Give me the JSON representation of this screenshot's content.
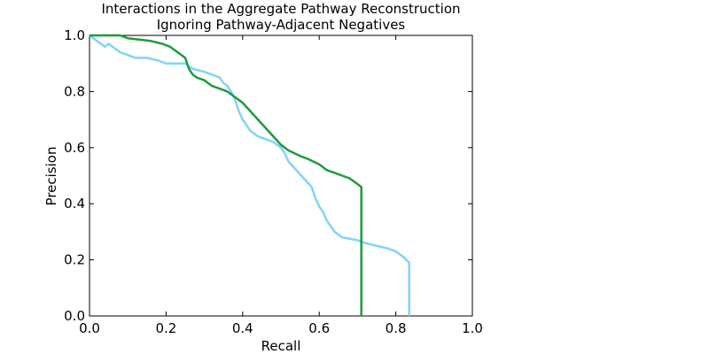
{
  "chart_data": {
    "type": "line",
    "title_line1": "Interactions in the Aggregate Pathway Reconstruction",
    "title_line2": "Ignoring Pathway-Adjacent Negatives",
    "xlabel": "Recall",
    "ylabel": "Precision",
    "xlim": [
      0.0,
      1.0
    ],
    "ylim": [
      0.0,
      1.0
    ],
    "xticks": [
      "0.0",
      "0.2",
      "0.4",
      "0.6",
      "0.8",
      "1.0"
    ],
    "yticks": [
      "0.0",
      "0.2",
      "0.4",
      "0.6",
      "0.8",
      "1.0"
    ],
    "grid": false,
    "legend": "none",
    "series": [
      {
        "color": "#7fd4f7",
        "x": [
          0.0,
          0.01,
          0.02,
          0.03,
          0.04,
          0.05,
          0.06,
          0.08,
          0.1,
          0.12,
          0.15,
          0.18,
          0.2,
          0.22,
          0.25,
          0.27,
          0.3,
          0.32,
          0.34,
          0.35,
          0.36,
          0.37,
          0.38,
          0.39,
          0.4,
          0.42,
          0.44,
          0.46,
          0.48,
          0.5,
          0.51,
          0.52,
          0.54,
          0.56,
          0.58,
          0.59,
          0.6,
          0.61,
          0.62,
          0.64,
          0.66,
          0.7,
          0.72,
          0.75,
          0.78,
          0.8,
          0.82,
          0.835,
          0.835
        ],
        "y": [
          1.0,
          0.99,
          0.98,
          0.97,
          0.96,
          0.97,
          0.96,
          0.94,
          0.93,
          0.92,
          0.92,
          0.91,
          0.9,
          0.9,
          0.9,
          0.88,
          0.87,
          0.86,
          0.85,
          0.83,
          0.82,
          0.8,
          0.77,
          0.73,
          0.7,
          0.66,
          0.64,
          0.63,
          0.62,
          0.6,
          0.58,
          0.55,
          0.52,
          0.49,
          0.46,
          0.42,
          0.39,
          0.37,
          0.34,
          0.3,
          0.28,
          0.27,
          0.26,
          0.25,
          0.24,
          0.23,
          0.21,
          0.19,
          0.0
        ]
      },
      {
        "color": "#1f9a3f",
        "x": [
          0.0,
          0.03,
          0.06,
          0.08,
          0.1,
          0.13,
          0.16,
          0.19,
          0.21,
          0.23,
          0.25,
          0.26,
          0.27,
          0.28,
          0.3,
          0.32,
          0.34,
          0.36,
          0.38,
          0.4,
          0.42,
          0.44,
          0.46,
          0.48,
          0.5,
          0.52,
          0.55,
          0.57,
          0.6,
          0.62,
          0.64,
          0.66,
          0.68,
          0.7,
          0.71,
          0.71
        ],
        "y": [
          1.0,
          1.0,
          1.0,
          1.0,
          0.99,
          0.985,
          0.98,
          0.97,
          0.96,
          0.94,
          0.92,
          0.88,
          0.86,
          0.85,
          0.84,
          0.82,
          0.81,
          0.8,
          0.78,
          0.76,
          0.73,
          0.7,
          0.67,
          0.64,
          0.61,
          0.59,
          0.57,
          0.56,
          0.54,
          0.52,
          0.51,
          0.5,
          0.49,
          0.47,
          0.46,
          0.0
        ]
      }
    ]
  }
}
